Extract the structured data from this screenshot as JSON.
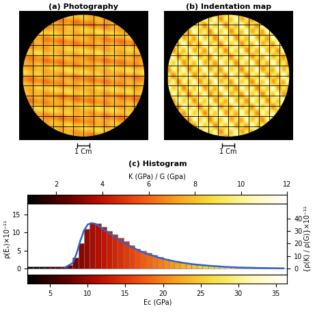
{
  "panels": [
    {
      "type": "photograph",
      "title": "(a) Photography",
      "scale_bar": {
        "length": 1,
        "label": "1 Cm"
      }
    },
    {
      "type": "indentation_map",
      "title": "(b) Indentation map",
      "scale_bar": {
        "length": 1,
        "label": "1 Cm"
      }
    }
  ],
  "chart_data": {
    "type": "histogram",
    "title": "(c) Histogram",
    "xlabel": "Ec (GPa)",
    "ylabel": "ρ(Eₛ)×10⁻¹¹",
    "y2label": "{ρ(K) / ρ(G)}×10⁻¹¹",
    "x2label": "K (GPa) / G (Gpa)",
    "bins": [
      2.0,
      2.75,
      3.5,
      4.25,
      5.0,
      5.75,
      6.5,
      7.25,
      8.0,
      8.75,
      9.5,
      10.25,
      11.0,
      11.75,
      12.5,
      13.25,
      14.0,
      14.75,
      15.5,
      16.25,
      17.0,
      17.75,
      18.5,
      19.25,
      20.0,
      20.75,
      21.5,
      22.25,
      23.0,
      23.75,
      24.5,
      25.25,
      26.0,
      26.75,
      27.5,
      28.25,
      29.0,
      29.75,
      30.5,
      31.25,
      32.0,
      32.75,
      33.5,
      34.25,
      35.0,
      35.75,
      36.5
    ],
    "counts": [
      0.5,
      0.5,
      0.5,
      0.5,
      0.5,
      0.5,
      0.5,
      1.0,
      3.0,
      7.0,
      11.0,
      12.5,
      12.5,
      11.5,
      10.5,
      9.5,
      8.5,
      7.5,
      6.5,
      5.5,
      5.0,
      4.3,
      3.7,
      3.2,
      2.7,
      2.3,
      2.0,
      1.7,
      1.4,
      1.2,
      1.0,
      0.8,
      0.7,
      0.6,
      0.5,
      0.4,
      0.35,
      0.3,
      0.25,
      0.2,
      0.15,
      0.12,
      0.1,
      0.08,
      0.06,
      0.05
    ],
    "fit": {
      "color": "#2f5fd0",
      "x": [
        7,
        8,
        8.5,
        9,
        9.5,
        10,
        10.5,
        11,
        11.5,
        12,
        13,
        14,
        15,
        16,
        17,
        18,
        19,
        20,
        22,
        24,
        26,
        28,
        30,
        33,
        36
      ],
      "values": [
        0.3,
        1.5,
        4,
        7.5,
        10.5,
        12.2,
        12.6,
        12.4,
        11.8,
        11,
        9.6,
        8.2,
        6.9,
        5.8,
        4.8,
        4,
        3.3,
        2.7,
        1.8,
        1.2,
        0.8,
        0.5,
        0.3,
        0.15,
        0.05
      ]
    },
    "xlim": [
      2,
      36.5
    ],
    "xticks": [
      5,
      10,
      15,
      20,
      25,
      30,
      35
    ],
    "ylim": [
      -1.7,
      18
    ],
    "yticks": [
      0,
      5,
      10,
      15
    ],
    "y2lim": [
      -5,
      52
    ],
    "y2ticks": [
      0,
      10,
      20,
      30,
      40
    ],
    "x2lim": [
      0.75,
      12
    ],
    "x2ticks": [
      2,
      4,
      6,
      8,
      10,
      12
    ]
  }
}
